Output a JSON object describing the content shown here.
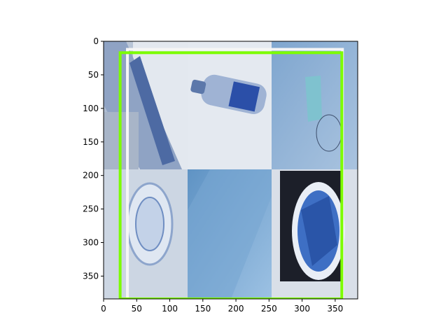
{
  "figure": {
    "image_description": "2x3 mosaic of blue-toned photos: hand holding a pen, plastic water bottle, crumpled blue surface, clear plastic lid/cup, blue fabric close-up, bowl of blue plastic items",
    "x_ticks": [
      "0",
      "50",
      "100",
      "150",
      "200",
      "250",
      "300",
      "350"
    ],
    "y_ticks": [
      "0",
      "50",
      "100",
      "150",
      "200",
      "250",
      "300",
      "350"
    ],
    "x_range": [
      0,
      384
    ],
    "y_range": [
      384,
      0
    ],
    "boxes": [
      {
        "label": "white-box",
        "color": "#f5f5f5",
        "x0": 36,
        "y0": 12,
        "x1": 361,
        "y1": 384
      },
      {
        "label": "green-box",
        "color": "#7cfc00",
        "x0": 25,
        "y0": 17,
        "x1": 360,
        "y1": 384
      }
    ]
  }
}
